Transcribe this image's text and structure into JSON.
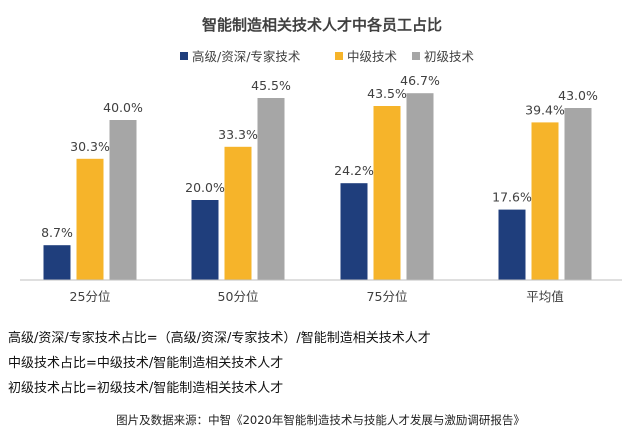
{
  "chart_data": {
    "type": "bar",
    "title": "智能制造相关技术人才中各员工占比",
    "categories": [
      "25分位",
      "50分位",
      "75分位",
      "平均值"
    ],
    "series": [
      {
        "name": "高级/资深/专家技术",
        "color": "#1f3e7c",
        "values": [
          8.7,
          20.0,
          24.2,
          17.6
        ],
        "labels": [
          "8.7%",
          "20.0%",
          "24.2%",
          "17.6%"
        ]
      },
      {
        "name": "中级技术",
        "color": "#f6b42a",
        "values": [
          30.3,
          33.3,
          43.5,
          39.4
        ],
        "labels": [
          "30.3%",
          "33.3%",
          "43.5%",
          "39.4%"
        ]
      },
      {
        "name": "初级技术",
        "color": "#a6a6a6",
        "values": [
          40.0,
          45.5,
          46.7,
          43.0
        ],
        "labels": [
          "40.0%",
          "45.5%",
          "46.7%",
          "43.0%"
        ]
      }
    ],
    "unit": "%",
    "ylim": [
      0,
      50
    ],
    "grid": false,
    "legend": "top"
  },
  "notes": [
    "高级/资深/专家技术占比=（高级/资深/专家技术）/智能制造相关技术人才",
    "中级技术占比=中级技术/智能制造相关技术人才",
    "初级技术占比=初级技术/智能制造相关技术人才"
  ],
  "source": "图片及数据来源：中智《2020年智能制造技术与技能人才发展与激励调研报告》"
}
